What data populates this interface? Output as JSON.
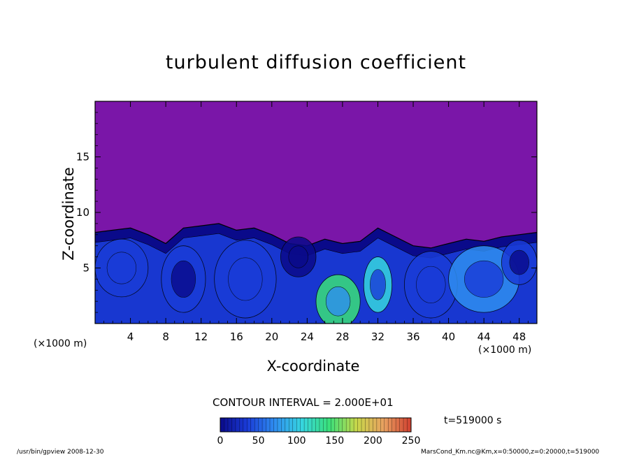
{
  "chart_data": {
    "type": "heatmap",
    "title": "turbulent diffusion coefficient",
    "xlabel": "X-coordinate",
    "ylabel": "Z-coordinate",
    "x_unit": "(×1000 m)",
    "y_unit": "(×1000 m)",
    "xlim": [
      0,
      50
    ],
    "ylim": [
      0,
      20
    ],
    "x_ticks": [
      4,
      8,
      12,
      16,
      20,
      24,
      28,
      32,
      36,
      40,
      44,
      48
    ],
    "y_ticks": [
      5,
      10,
      15
    ],
    "contour_label": "CONTOUR INTERVAL = 2.000E+01",
    "colorbar": {
      "min": 0,
      "max": 250,
      "ticks": [
        0,
        50,
        100,
        150,
        200,
        250
      ],
      "colors": [
        "#0a0a8a",
        "#1a3cd8",
        "#2f8ef0",
        "#36d6e0",
        "#3ae07a",
        "#c8d84a",
        "#e8a060",
        "#d04030"
      ]
    },
    "background_value": 0,
    "background_color": "#7a16a8",
    "boundary_layer_top": [
      [
        0,
        8.2
      ],
      [
        2,
        8.4
      ],
      [
        4,
        8.6
      ],
      [
        6,
        8.0
      ],
      [
        8,
        7.2
      ],
      [
        10,
        8.6
      ],
      [
        12,
        8.8
      ],
      [
        14,
        9.0
      ],
      [
        16,
        8.4
      ],
      [
        18,
        8.6
      ],
      [
        20,
        8.0
      ],
      [
        22,
        7.2
      ],
      [
        24,
        7.0
      ],
      [
        26,
        7.6
      ],
      [
        28,
        7.2
      ],
      [
        30,
        7.4
      ],
      [
        32,
        8.6
      ],
      [
        34,
        7.8
      ],
      [
        36,
        7.0
      ],
      [
        38,
        6.8
      ],
      [
        40,
        7.2
      ],
      [
        42,
        7.6
      ],
      [
        44,
        7.4
      ],
      [
        46,
        7.8
      ],
      [
        48,
        8.0
      ],
      [
        50,
        8.2
      ]
    ],
    "eddies": [
      {
        "x": 3,
        "z": 5.0,
        "rx": 3.0,
        "rz": 2.6,
        "value": 60
      },
      {
        "x": 10,
        "z": 4.0,
        "rx": 2.5,
        "rz": 3.0,
        "value": 40
      },
      {
        "x": 17,
        "z": 4.0,
        "rx": 3.5,
        "rz": 3.5,
        "value": 60
      },
      {
        "x": 23,
        "z": 6.0,
        "rx": 2.0,
        "rz": 1.8,
        "value": 30
      },
      {
        "x": 27.5,
        "z": 2.0,
        "rx": 2.5,
        "rz": 2.4,
        "value": 130
      },
      {
        "x": 32,
        "z": 3.5,
        "rx": 1.6,
        "rz": 2.5,
        "value": 110
      },
      {
        "x": 38,
        "z": 3.5,
        "rx": 3.0,
        "rz": 3.0,
        "value": 60
      },
      {
        "x": 44,
        "z": 4.0,
        "rx": 4.0,
        "rz": 3.0,
        "value": 70
      },
      {
        "x": 48,
        "z": 5.5,
        "rx": 2.0,
        "rz": 2.0,
        "value": 40
      }
    ],
    "time_label": "t=519000 s"
  },
  "footer": {
    "left": "/usr/bin/gpview   2008-12-30",
    "right": "MarsCond_Km.nc@Km,x=0:50000,z=0:20000,t=519000"
  }
}
